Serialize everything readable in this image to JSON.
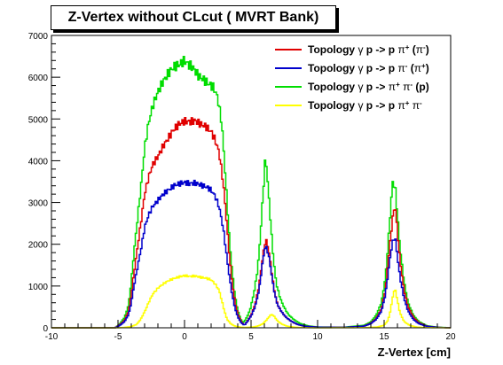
{
  "chart_data": {
    "type": "line",
    "title": "Z-Vertex without CLcut ( MVRT Bank)",
    "xlabel": "Z-Vertex [cm]",
    "ylabel": "",
    "xlim": [
      -10,
      20
    ],
    "ylim": [
      0,
      7000
    ],
    "xticks": [
      "-10",
      "-5",
      "0",
      "5",
      "10",
      "15",
      "20"
    ],
    "yticks": [
      "0",
      "1000",
      "2000",
      "3000",
      "4000",
      "5000",
      "6000",
      "7000"
    ],
    "grid": false,
    "legend_position": "top-right",
    "series": [
      {
        "name": "Topology γ p -> p π+ (π-)",
        "legend": {
          "pre": "Topology ",
          "g": "γ",
          "mid": " p -> p ",
          "pi1": "π",
          "sup1": "+",
          "open": " (",
          "pi2": "π",
          "sup2": "-",
          "close": ")"
        },
        "color": "#e00000",
        "points": [
          [
            -10,
            0
          ],
          [
            -5.2,
            0
          ],
          [
            -4.9,
            60
          ],
          [
            -4.5,
            180
          ],
          [
            -4.2,
            400
          ],
          [
            -4.0,
            800
          ],
          [
            -3.8,
            1300
          ],
          [
            -3.5,
            2000
          ],
          [
            -3.2,
            2700
          ],
          [
            -3.0,
            3200
          ],
          [
            -2.7,
            3600
          ],
          [
            -2.4,
            3900
          ],
          [
            -2.0,
            4100
          ],
          [
            -1.6,
            4350
          ],
          [
            -1.2,
            4550
          ],
          [
            -0.8,
            4750
          ],
          [
            -0.4,
            4880
          ],
          [
            0,
            4950
          ],
          [
            0.4,
            4930
          ],
          [
            0.8,
            4960
          ],
          [
            1.2,
            4880
          ],
          [
            1.6,
            4820
          ],
          [
            2.0,
            4700
          ],
          [
            2.3,
            4500
          ],
          [
            2.6,
            4200
          ],
          [
            2.9,
            3500
          ],
          [
            3.1,
            2800
          ],
          [
            3.3,
            2000
          ],
          [
            3.5,
            1300
          ],
          [
            3.7,
            800
          ],
          [
            3.9,
            450
          ],
          [
            4.1,
            250
          ],
          [
            4.3,
            130
          ],
          [
            4.5,
            60
          ],
          [
            4.7,
            150
          ],
          [
            5.0,
            300
          ],
          [
            5.3,
            550
          ],
          [
            5.6,
            1000
          ],
          [
            5.8,
            1500
          ],
          [
            6.0,
            1950
          ],
          [
            6.1,
            2100
          ],
          [
            6.2,
            2050
          ],
          [
            6.4,
            1700
          ],
          [
            6.6,
            1200
          ],
          [
            6.8,
            800
          ],
          [
            7.0,
            550
          ],
          [
            7.3,
            380
          ],
          [
            7.6,
            260
          ],
          [
            8.0,
            160
          ],
          [
            8.5,
            80
          ],
          [
            9.0,
            40
          ],
          [
            10,
            15
          ],
          [
            12,
            10
          ],
          [
            13.5,
            40
          ],
          [
            14.0,
            110
          ],
          [
            14.4,
            220
          ],
          [
            14.8,
            450
          ],
          [
            15.1,
            900
          ],
          [
            15.3,
            1600
          ],
          [
            15.5,
            2200
          ],
          [
            15.7,
            2800
          ],
          [
            15.85,
            2850
          ],
          [
            16.0,
            2300
          ],
          [
            16.2,
            1600
          ],
          [
            16.5,
            900
          ],
          [
            16.8,
            500
          ],
          [
            17.2,
            250
          ],
          [
            17.6,
            120
          ],
          [
            18.2,
            40
          ],
          [
            19,
            10
          ],
          [
            20,
            0
          ]
        ]
      },
      {
        "name": "Topology γ p -> p π- (π+)",
        "legend": {
          "pre": "Topology ",
          "g": "γ",
          "mid": " p -> p ",
          "pi1": "π",
          "sup1": "-",
          "open": " (",
          "pi2": "π",
          "sup2": "+",
          "close": ")"
        },
        "color": "#0000cc",
        "points": [
          [
            -10,
            0
          ],
          [
            -5.2,
            0
          ],
          [
            -4.9,
            50
          ],
          [
            -4.5,
            150
          ],
          [
            -4.2,
            320
          ],
          [
            -4.0,
            600
          ],
          [
            -3.8,
            1000
          ],
          [
            -3.5,
            1500
          ],
          [
            -3.2,
            2000
          ],
          [
            -3.0,
            2400
          ],
          [
            -2.7,
            2700
          ],
          [
            -2.4,
            2900
          ],
          [
            -2.0,
            3050
          ],
          [
            -1.6,
            3200
          ],
          [
            -1.2,
            3300
          ],
          [
            -0.8,
            3400
          ],
          [
            -0.4,
            3450
          ],
          [
            0,
            3480
          ],
          [
            0.4,
            3450
          ],
          [
            0.8,
            3470
          ],
          [
            1.2,
            3420
          ],
          [
            1.6,
            3380
          ],
          [
            2.0,
            3300
          ],
          [
            2.3,
            3150
          ],
          [
            2.6,
            2900
          ],
          [
            2.9,
            2400
          ],
          [
            3.1,
            1900
          ],
          [
            3.3,
            1400
          ],
          [
            3.5,
            950
          ],
          [
            3.7,
            600
          ],
          [
            3.9,
            350
          ],
          [
            4.1,
            200
          ],
          [
            4.3,
            110
          ],
          [
            4.5,
            60
          ],
          [
            4.7,
            140
          ],
          [
            5.0,
            280
          ],
          [
            5.3,
            500
          ],
          [
            5.6,
            900
          ],
          [
            5.8,
            1400
          ],
          [
            6.0,
            1850
          ],
          [
            6.1,
            1950
          ],
          [
            6.2,
            1900
          ],
          [
            6.4,
            1600
          ],
          [
            6.6,
            1150
          ],
          [
            6.8,
            780
          ],
          [
            7.0,
            540
          ],
          [
            7.3,
            380
          ],
          [
            7.6,
            260
          ],
          [
            8.0,
            160
          ],
          [
            8.5,
            80
          ],
          [
            9.0,
            40
          ],
          [
            10,
            15
          ],
          [
            12,
            10
          ],
          [
            13.5,
            40
          ],
          [
            14.0,
            100
          ],
          [
            14.4,
            200
          ],
          [
            14.8,
            400
          ],
          [
            15.1,
            800
          ],
          [
            15.3,
            1300
          ],
          [
            15.5,
            1800
          ],
          [
            15.7,
            2150
          ],
          [
            15.85,
            2100
          ],
          [
            16.0,
            1700
          ],
          [
            16.2,
            1200
          ],
          [
            16.5,
            700
          ],
          [
            16.8,
            400
          ],
          [
            17.2,
            200
          ],
          [
            17.6,
            100
          ],
          [
            18.2,
            35
          ],
          [
            19,
            10
          ],
          [
            20,
            0
          ]
        ]
      },
      {
        "name": "Topology γ p -> π+ π- (p)",
        "legend": {
          "pre": "Topology ",
          "g": "γ",
          "mid": " p -> ",
          "pi1": "π",
          "sup1": "+",
          "open": " ",
          "pi2": "π",
          "sup2": "-",
          "close": " (p)"
        },
        "color": "#00dd00",
        "points": [
          [
            -10,
            0
          ],
          [
            -5.2,
            0
          ],
          [
            -4.9,
            80
          ],
          [
            -4.5,
            250
          ],
          [
            -4.2,
            550
          ],
          [
            -4.0,
            1100
          ],
          [
            -3.8,
            1800
          ],
          [
            -3.5,
            2700
          ],
          [
            -3.2,
            3600
          ],
          [
            -3.0,
            4300
          ],
          [
            -2.7,
            4900
          ],
          [
            -2.4,
            5300
          ],
          [
            -2.0,
            5650
          ],
          [
            -1.6,
            5900
          ],
          [
            -1.2,
            6100
          ],
          [
            -0.8,
            6250
          ],
          [
            -0.4,
            6300
          ],
          [
            0,
            6400
          ],
          [
            0.3,
            6300
          ],
          [
            0.6,
            6250
          ],
          [
            1.0,
            6050
          ],
          [
            1.4,
            5950
          ],
          [
            1.8,
            5850
          ],
          [
            2.2,
            5750
          ],
          [
            2.5,
            5500
          ],
          [
            2.8,
            4900
          ],
          [
            3.0,
            4000
          ],
          [
            3.2,
            3000
          ],
          [
            3.4,
            2000
          ],
          [
            3.6,
            1300
          ],
          [
            3.8,
            750
          ],
          [
            4.0,
            420
          ],
          [
            4.2,
            220
          ],
          [
            4.4,
            120
          ],
          [
            4.6,
            200
          ],
          [
            4.9,
            400
          ],
          [
            5.2,
            800
          ],
          [
            5.5,
            1400
          ],
          [
            5.7,
            2200
          ],
          [
            5.9,
            3200
          ],
          [
            6.05,
            3950
          ],
          [
            6.15,
            3900
          ],
          [
            6.3,
            3300
          ],
          [
            6.5,
            2400
          ],
          [
            6.7,
            1600
          ],
          [
            6.9,
            1050
          ],
          [
            7.2,
            700
          ],
          [
            7.5,
            480
          ],
          [
            7.8,
            320
          ],
          [
            8.2,
            200
          ],
          [
            8.7,
            100
          ],
          [
            9.3,
            45
          ],
          [
            10,
            20
          ],
          [
            12,
            15
          ],
          [
            13.5,
            60
          ],
          [
            14.0,
            140
          ],
          [
            14.4,
            300
          ],
          [
            14.8,
            600
          ],
          [
            15.1,
            1200
          ],
          [
            15.3,
            2000
          ],
          [
            15.5,
            2900
          ],
          [
            15.65,
            3500
          ],
          [
            15.85,
            3300
          ],
          [
            16.0,
            2700
          ],
          [
            16.2,
            1900
          ],
          [
            16.5,
            1100
          ],
          [
            16.8,
            600
          ],
          [
            17.2,
            300
          ],
          [
            17.6,
            150
          ],
          [
            18.2,
            50
          ],
          [
            19,
            15
          ],
          [
            20,
            0
          ]
        ]
      },
      {
        "name": "Topology γ p -> p π+ π-",
        "legend": {
          "pre": "Topology ",
          "g": "γ",
          "mid": " p -> p ",
          "pi1": "π",
          "sup1": "+",
          "open": " ",
          "pi2": "π",
          "sup2": "-",
          "close": ""
        },
        "color": "#ffff00",
        "points": [
          [
            -10,
            0
          ],
          [
            -5,
            0
          ],
          [
            -4.5,
            10
          ],
          [
            -4.0,
            30
          ],
          [
            -3.6,
            80
          ],
          [
            -3.3,
            200
          ],
          [
            -3.0,
            380
          ],
          [
            -2.7,
            600
          ],
          [
            -2.4,
            800
          ],
          [
            -2.0,
            950
          ],
          [
            -1.6,
            1050
          ],
          [
            -1.2,
            1130
          ],
          [
            -0.8,
            1180
          ],
          [
            -0.4,
            1220
          ],
          [
            0,
            1250
          ],
          [
            0.4,
            1230
          ],
          [
            0.8,
            1240
          ],
          [
            1.2,
            1210
          ],
          [
            1.6,
            1190
          ],
          [
            2.0,
            1150
          ],
          [
            2.3,
            1050
          ],
          [
            2.6,
            900
          ],
          [
            2.8,
            650
          ],
          [
            3.0,
            400
          ],
          [
            3.2,
            200
          ],
          [
            3.5,
            90
          ],
          [
            3.8,
            40
          ],
          [
            4.2,
            15
          ],
          [
            4.6,
            10
          ],
          [
            5.2,
            20
          ],
          [
            5.6,
            50
          ],
          [
            5.9,
            100
          ],
          [
            6.2,
            200
          ],
          [
            6.45,
            300
          ],
          [
            6.6,
            320
          ],
          [
            6.8,
            250
          ],
          [
            7.0,
            160
          ],
          [
            7.3,
            90
          ],
          [
            7.7,
            40
          ],
          [
            8.3,
            15
          ],
          [
            9,
            5
          ],
          [
            10,
            0
          ],
          [
            13.5,
            5
          ],
          [
            14.5,
            20
          ],
          [
            15.0,
            60
          ],
          [
            15.3,
            180
          ],
          [
            15.5,
            450
          ],
          [
            15.7,
            850
          ],
          [
            15.85,
            900
          ],
          [
            16.0,
            650
          ],
          [
            16.2,
            350
          ],
          [
            16.5,
            150
          ],
          [
            16.9,
            60
          ],
          [
            17.4,
            20
          ],
          [
            18.2,
            5
          ],
          [
            20,
            0
          ]
        ]
      }
    ]
  }
}
